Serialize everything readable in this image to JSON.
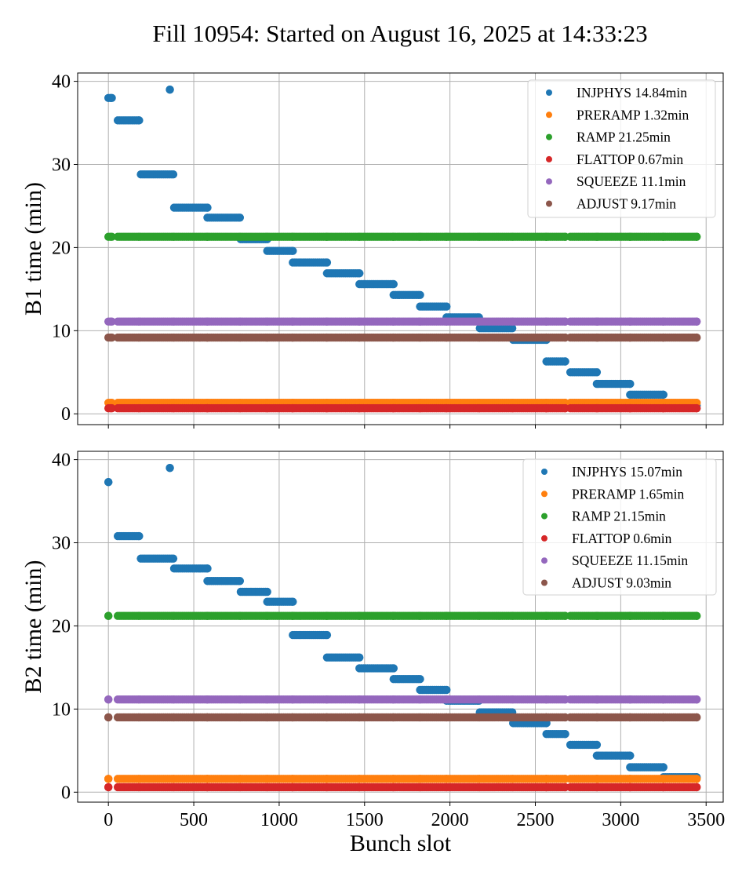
{
  "title": "Fill 10954: Started on August 16, 2025 at 14:33:23",
  "chart_data": [
    {
      "type": "scatter",
      "ylabel": "B1 time (min)",
      "xlabel": "",
      "xlim": [
        -180,
        3600
      ],
      "ylim": [
        -1.3,
        41
      ],
      "xticks": [
        0,
        500,
        1000,
        1500,
        2000,
        2500,
        3000,
        3500
      ],
      "yticks": [
        0,
        10,
        20,
        30,
        40
      ],
      "grid": true,
      "legend_position": "top-right",
      "trains": [
        [
          0,
          20
        ],
        [
          55,
          180
        ],
        [
          190,
          380
        ],
        [
          360,
          360
        ],
        [
          385,
          580
        ],
        [
          580,
          770
        ],
        [
          775,
          930
        ],
        [
          930,
          1080
        ],
        [
          1080,
          1280
        ],
        [
          1280,
          1470
        ],
        [
          1470,
          1670
        ],
        [
          1670,
          1825
        ],
        [
          1825,
          1980
        ],
        [
          1980,
          2170
        ],
        [
          2175,
          2365
        ],
        [
          2370,
          2565
        ],
        [
          2565,
          2675
        ],
        [
          2705,
          2860
        ],
        [
          2860,
          3055
        ],
        [
          3055,
          3250
        ],
        [
          3250,
          3445
        ]
      ],
      "series": [
        {
          "name": "INJPHYS 14.84min",
          "color": "#1f77b4",
          "y": [
            38.0,
            35.3,
            28.8,
            39.0,
            24.8,
            23.6,
            21.0,
            19.6,
            18.2,
            16.9,
            15.6,
            14.3,
            12.9,
            11.6,
            10.3,
            8.9,
            6.3,
            5.0,
            3.6,
            2.3,
            1.0
          ]
        },
        {
          "name": "PRERAMP 1.32min",
          "color": "#ff7f0e",
          "y": [
            1.32,
            1.32,
            1.32,
            null,
            1.32,
            1.32,
            1.32,
            1.32,
            1.32,
            1.32,
            1.32,
            1.32,
            1.32,
            1.32,
            1.32,
            1.32,
            1.32,
            1.32,
            1.32,
            1.32,
            1.32
          ]
        },
        {
          "name": "RAMP 21.25min",
          "color": "#2ca02c",
          "y": [
            21.3,
            21.3,
            21.3,
            null,
            21.3,
            21.3,
            21.3,
            21.3,
            21.3,
            21.3,
            21.3,
            21.3,
            21.3,
            21.3,
            21.3,
            21.3,
            21.3,
            21.3,
            21.3,
            21.3,
            21.3
          ]
        },
        {
          "name": "FLATTOP 0.67min",
          "color": "#d62728",
          "y": [
            0.67,
            0.67,
            0.67,
            null,
            0.67,
            0.67,
            0.67,
            0.67,
            0.67,
            0.67,
            0.67,
            0.67,
            0.67,
            0.67,
            0.67,
            0.67,
            0.67,
            0.67,
            0.67,
            0.67,
            0.67
          ]
        },
        {
          "name": "SQUEEZE 11.1min",
          "color": "#9467bd",
          "y": [
            11.1,
            11.1,
            11.1,
            null,
            11.1,
            11.1,
            11.1,
            11.1,
            11.1,
            11.1,
            11.1,
            11.1,
            11.1,
            11.1,
            11.1,
            11.1,
            11.1,
            11.1,
            11.1,
            11.1,
            11.1
          ]
        },
        {
          "name": "ADJUST 9.17min",
          "color": "#8c564b",
          "y": [
            9.17,
            9.17,
            9.17,
            null,
            9.17,
            9.17,
            9.17,
            9.17,
            9.17,
            9.17,
            9.17,
            9.17,
            9.17,
            9.17,
            9.17,
            9.17,
            9.17,
            9.17,
            9.17,
            9.17,
            9.17
          ]
        }
      ]
    },
    {
      "type": "scatter",
      "ylabel": "B2 time (min)",
      "xlabel": "Bunch slot",
      "xlim": [
        -180,
        3600
      ],
      "ylim": [
        -1.2,
        41
      ],
      "xticks": [
        0,
        500,
        1000,
        1500,
        2000,
        2500,
        3000,
        3500
      ],
      "yticks": [
        0,
        10,
        20,
        30,
        40
      ],
      "grid": true,
      "legend_position": "top-right",
      "trains": [
        [
          0,
          0
        ],
        [
          55,
          180
        ],
        [
          190,
          380
        ],
        [
          360,
          360
        ],
        [
          385,
          580
        ],
        [
          580,
          770
        ],
        [
          775,
          930
        ],
        [
          930,
          1080
        ],
        [
          1080,
          1280
        ],
        [
          1280,
          1470
        ],
        [
          1470,
          1670
        ],
        [
          1670,
          1825
        ],
        [
          1825,
          1980
        ],
        [
          1980,
          2170
        ],
        [
          2175,
          2365
        ],
        [
          2370,
          2565
        ],
        [
          2565,
          2675
        ],
        [
          2705,
          2860
        ],
        [
          2860,
          3055
        ],
        [
          3055,
          3250
        ],
        [
          3250,
          3445
        ]
      ],
      "series": [
        {
          "name": "INJPHYS 15.07min",
          "color": "#1f77b4",
          "y": [
            37.3,
            30.8,
            28.1,
            39.0,
            26.9,
            25.4,
            24.1,
            22.9,
            18.9,
            16.2,
            14.9,
            13.6,
            12.3,
            11.0,
            9.6,
            8.3,
            7.0,
            5.7,
            4.4,
            3.0,
            1.8
          ]
        },
        {
          "name": "PRERAMP 1.65min",
          "color": "#ff7f0e",
          "y": [
            1.6,
            1.6,
            1.6,
            null,
            1.6,
            1.6,
            1.6,
            1.6,
            1.6,
            1.6,
            1.6,
            1.6,
            1.6,
            1.6,
            1.6,
            1.6,
            1.6,
            1.6,
            1.6,
            1.6,
            1.6
          ]
        },
        {
          "name": "RAMP 21.15min",
          "color": "#2ca02c",
          "y": [
            21.2,
            21.2,
            21.2,
            null,
            21.2,
            21.2,
            21.2,
            21.2,
            21.2,
            21.2,
            21.2,
            21.2,
            21.2,
            21.2,
            21.2,
            21.2,
            21.2,
            21.2,
            21.2,
            21.2,
            21.2
          ]
        },
        {
          "name": "FLATTOP 0.6min",
          "color": "#d62728",
          "y": [
            0.6,
            0.6,
            0.6,
            null,
            0.6,
            0.6,
            0.6,
            0.6,
            0.6,
            0.6,
            0.6,
            0.6,
            0.6,
            0.6,
            0.6,
            0.6,
            0.6,
            0.6,
            0.6,
            0.6,
            0.6
          ]
        },
        {
          "name": "SQUEEZE 11.15min",
          "color": "#9467bd",
          "y": [
            11.15,
            11.15,
            11.15,
            null,
            11.15,
            11.15,
            11.15,
            11.15,
            11.15,
            11.15,
            11.15,
            11.15,
            11.15,
            11.15,
            11.15,
            11.15,
            11.15,
            11.15,
            11.15,
            11.15,
            11.15
          ]
        },
        {
          "name": "ADJUST 9.03min",
          "color": "#8c564b",
          "y": [
            9.0,
            9.0,
            9.0,
            null,
            9.0,
            9.0,
            9.0,
            9.0,
            9.0,
            9.0,
            9.0,
            9.0,
            9.0,
            9.0,
            9.0,
            9.0,
            9.0,
            9.0,
            9.0,
            9.0,
            9.0
          ]
        }
      ]
    }
  ]
}
